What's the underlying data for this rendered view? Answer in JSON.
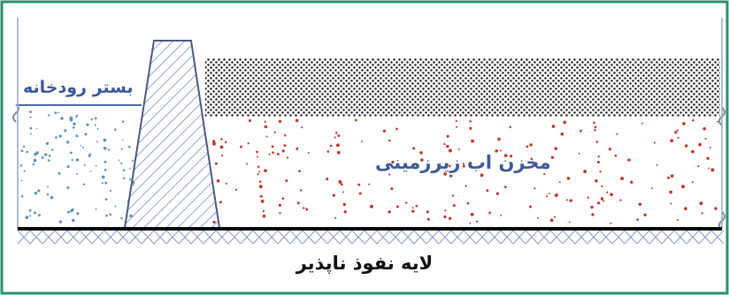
{
  "labels": {
    "riverbed": "بستر رودخانه",
    "aquifer": "مخزن اب زیرزمینی",
    "impermeable_layer": "لایه نفوذ ناپذیر"
  },
  "colors": {
    "frame": "#2f8f6a",
    "label_blue": "#3d5a99",
    "dam_hatch": "#6a7fb8",
    "water_dots": "#5a92c4",
    "aquifer_dots": "#c0392b",
    "gravel_dots": "#222222",
    "bedrock_hatch": "#8c9cc4"
  }
}
